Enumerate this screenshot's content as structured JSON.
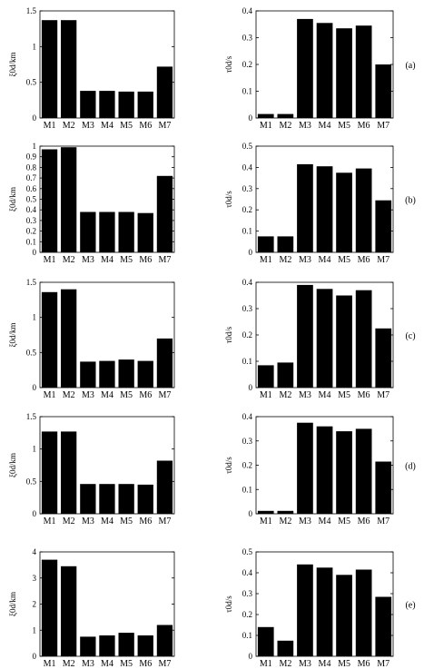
{
  "chart_data": [
    {
      "type": "bar",
      "panel": "a",
      "side": "left",
      "ylabel": "ξ0d/km",
      "categories": [
        "M1",
        "M2",
        "M3",
        "M4",
        "M5",
        "M6",
        "M7"
      ],
      "values": [
        1.37,
        1.37,
        0.38,
        0.38,
        0.37,
        0.37,
        0.72
      ],
      "ylim": [
        0,
        1.5
      ],
      "yticks": [
        "0",
        "0.5",
        "1",
        "1.5"
      ]
    },
    {
      "type": "bar",
      "panel": "a",
      "side": "right",
      "ylabel": "τ0d/s",
      "categories": [
        "M1",
        "M2",
        "M3",
        "M4",
        "M5",
        "M6",
        "M7"
      ],
      "values": [
        0.015,
        0.015,
        0.37,
        0.355,
        0.335,
        0.345,
        0.2
      ],
      "ylim": [
        0,
        0.4
      ],
      "yticks": [
        "0",
        "0.1",
        "0.2",
        "0.3",
        "0.4"
      ],
      "panel_label": "(a)"
    },
    {
      "type": "bar",
      "panel": "b",
      "side": "left",
      "ylabel": "ξ0d/km",
      "categories": [
        "M1",
        "M2",
        "M3",
        "M4",
        "M5",
        "M6",
        "M7"
      ],
      "values": [
        0.97,
        0.99,
        0.38,
        0.38,
        0.38,
        0.37,
        0.72
      ],
      "ylim": [
        0,
        1
      ],
      "yticks": [
        "0",
        "0.1",
        "0.2",
        "0.3",
        "0.4",
        "0.5",
        "0.6",
        "0.7",
        "0.8",
        "0.9",
        "1"
      ]
    },
    {
      "type": "bar",
      "panel": "b",
      "side": "right",
      "ylabel": "τ0d/s",
      "categories": [
        "M1",
        "M2",
        "M3",
        "M4",
        "M5",
        "M6",
        "M7"
      ],
      "values": [
        0.075,
        0.075,
        0.415,
        0.405,
        0.375,
        0.395,
        0.245
      ],
      "ylim": [
        0,
        0.5
      ],
      "yticks": [
        "0",
        "0.1",
        "0.2",
        "0.3",
        "0.4",
        "0.5"
      ],
      "panel_label": "(b)"
    },
    {
      "type": "bar",
      "panel": "c",
      "side": "left",
      "ylabel": "ξ0d/km",
      "categories": [
        "M1",
        "M2",
        "M3",
        "M4",
        "M5",
        "M6",
        "M7"
      ],
      "values": [
        1.36,
        1.4,
        0.37,
        0.38,
        0.4,
        0.38,
        0.7
      ],
      "ylim": [
        0,
        1.5
      ],
      "yticks": [
        "0",
        "0.5",
        "1",
        "1.5"
      ]
    },
    {
      "type": "bar",
      "panel": "c",
      "side": "right",
      "ylabel": "τ0d/s",
      "categories": [
        "M1",
        "M2",
        "M3",
        "M4",
        "M5",
        "M6",
        "M7"
      ],
      "values": [
        0.085,
        0.095,
        0.39,
        0.375,
        0.35,
        0.37,
        0.225
      ],
      "ylim": [
        0,
        0.4
      ],
      "yticks": [
        "0",
        "0.1",
        "0.2",
        "0.3",
        "0.4"
      ],
      "panel_label": "(c)"
    },
    {
      "type": "bar",
      "panel": "d",
      "side": "left",
      "ylabel": "ξ0d/km",
      "categories": [
        "M1",
        "M2",
        "M3",
        "M4",
        "M5",
        "M6",
        "M7"
      ],
      "values": [
        1.27,
        1.27,
        0.46,
        0.46,
        0.46,
        0.45,
        0.82
      ],
      "ylim": [
        0,
        1.5
      ],
      "yticks": [
        "0",
        "0.5",
        "1",
        "1.5"
      ]
    },
    {
      "type": "bar",
      "panel": "d",
      "side": "right",
      "ylabel": "τ0d/s",
      "categories": [
        "M1",
        "M2",
        "M3",
        "M4",
        "M5",
        "M6",
        "M7"
      ],
      "values": [
        0.012,
        0.012,
        0.375,
        0.36,
        0.34,
        0.35,
        0.215
      ],
      "ylim": [
        0,
        0.4
      ],
      "yticks": [
        "0",
        "0.1",
        "0.2",
        "0.3",
        "0.4"
      ],
      "panel_label": "(d)"
    },
    {
      "type": "bar",
      "panel": "e",
      "side": "left",
      "ylabel": "ξ0d/km",
      "categories": [
        "M1",
        "M2",
        "M3",
        "M4",
        "M5",
        "M6",
        "M7"
      ],
      "values": [
        3.7,
        3.45,
        0.75,
        0.8,
        0.9,
        0.8,
        1.2
      ],
      "ylim": [
        0,
        4
      ],
      "yticks": [
        "0",
        "1",
        "2",
        "3",
        "4"
      ]
    },
    {
      "type": "bar",
      "panel": "e",
      "side": "right",
      "ylabel": "τ0d/s",
      "categories": [
        "M1",
        "M2",
        "M3",
        "M4",
        "M5",
        "M6",
        "M7"
      ],
      "values": [
        0.14,
        0.075,
        0.44,
        0.425,
        0.39,
        0.415,
        0.285
      ],
      "ylim": [
        0,
        0.5
      ],
      "yticks": [
        "0",
        "0.1",
        "0.2",
        "0.3",
        "0.4",
        "0.5"
      ],
      "panel_label": "(e)"
    }
  ]
}
